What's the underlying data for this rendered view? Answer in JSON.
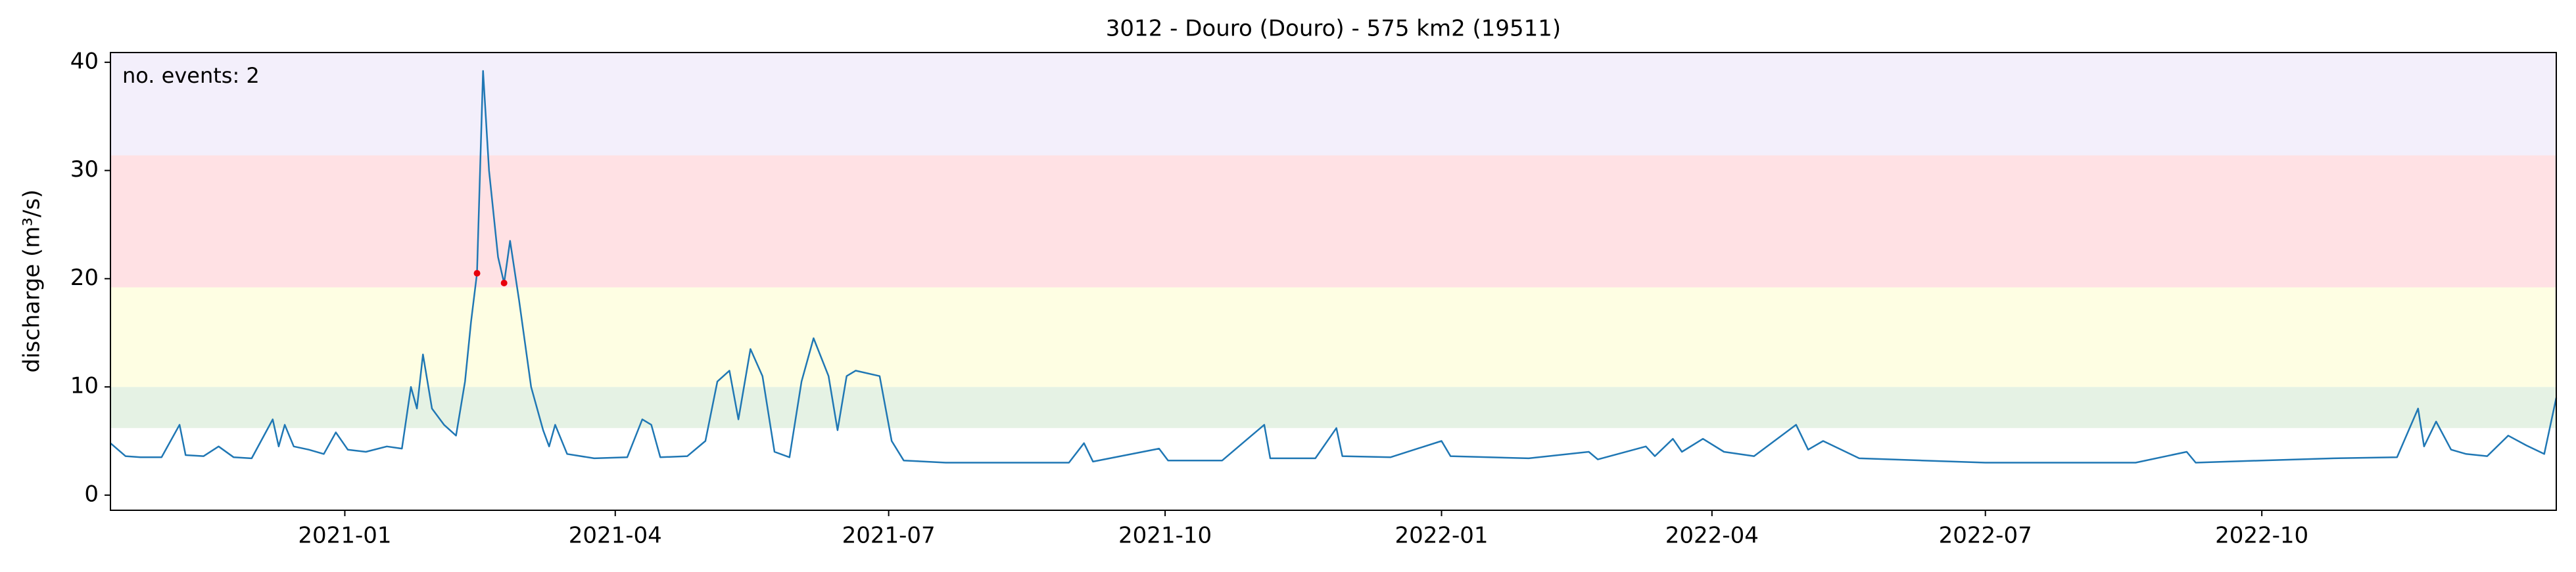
{
  "chart_data": {
    "type": "line",
    "title": "3012 - Douro (Douro) - 575 km2 (19511)",
    "ylabel": "discharge (m³/s)",
    "annotation": "no. events: 2",
    "annotation_color": "#e8000b",
    "xlim": [
      "2020-10-15",
      "2023-01-07"
    ],
    "ylim": [
      -1.4,
      40.9
    ],
    "yticks": [
      0,
      10,
      20,
      30,
      40
    ],
    "xticks": [
      {
        "value": "2021-01-01",
        "label": "2021-01"
      },
      {
        "value": "2021-04-01",
        "label": "2021-04"
      },
      {
        "value": "2021-07-01",
        "label": "2021-07"
      },
      {
        "value": "2021-10-01",
        "label": "2021-10"
      },
      {
        "value": "2022-01-01",
        "label": "2022-01"
      },
      {
        "value": "2022-04-01",
        "label": "2022-04"
      },
      {
        "value": "2022-07-01",
        "label": "2022-07"
      },
      {
        "value": "2022-10-01",
        "label": "2022-10"
      }
    ],
    "bands": [
      {
        "from": 6.2,
        "to": 10.0,
        "color": "#e5f2e4"
      },
      {
        "from": 10.0,
        "to": 19.2,
        "color": "#fefee3"
      },
      {
        "from": 19.2,
        "to": 31.4,
        "color": "#ffe1e4"
      },
      {
        "from": 31.4,
        "to": 40.9,
        "color": "#f3effb"
      }
    ],
    "series": [
      {
        "name": "discharge",
        "color": "#1f77b4",
        "x": [
          "2020-10-15",
          "2020-10-20",
          "2020-10-25",
          "2020-11-01",
          "2020-11-07",
          "2020-11-09",
          "2020-11-15",
          "2020-11-20",
          "2020-11-25",
          "2020-12-01",
          "2020-12-08",
          "2020-12-10",
          "2020-12-12",
          "2020-12-15",
          "2020-12-20",
          "2020-12-25",
          "2020-12-29",
          "2021-01-02",
          "2021-01-08",
          "2021-01-15",
          "2021-01-20",
          "2021-01-23",
          "2021-01-25",
          "2021-01-27",
          "2021-01-30",
          "2021-02-03",
          "2021-02-07",
          "2021-02-10",
          "2021-02-12",
          "2021-02-14",
          "2021-02-16",
          "2021-02-18",
          "2021-02-21",
          "2021-02-23",
          "2021-02-25",
          "2021-02-28",
          "2021-03-04",
          "2021-03-08",
          "2021-03-10",
          "2021-03-12",
          "2021-03-16",
          "2021-03-25",
          "2021-04-05",
          "2021-04-10",
          "2021-04-13",
          "2021-04-16",
          "2021-04-25",
          "2021-05-01",
          "2021-05-05",
          "2021-05-09",
          "2021-05-12",
          "2021-05-16",
          "2021-05-20",
          "2021-05-24",
          "2021-05-29",
          "2021-06-02",
          "2021-06-06",
          "2021-06-11",
          "2021-06-14",
          "2021-06-17",
          "2021-06-20",
          "2021-06-28",
          "2021-07-02",
          "2021-07-06",
          "2021-07-20",
          "2021-08-10",
          "2021-08-30",
          "2021-09-04",
          "2021-09-07",
          "2021-09-29",
          "2021-10-02",
          "2021-10-20",
          "2021-11-03",
          "2021-11-05",
          "2021-11-20",
          "2021-11-27",
          "2021-11-29",
          "2021-12-15",
          "2022-01-01",
          "2022-01-04",
          "2022-01-30",
          "2022-02-19",
          "2022-02-22",
          "2022-03-10",
          "2022-03-13",
          "2022-03-19",
          "2022-03-22",
          "2022-03-29",
          "2022-04-05",
          "2022-04-15",
          "2022-04-29",
          "2022-05-03",
          "2022-05-08",
          "2022-05-20",
          "2022-06-10",
          "2022-07-01",
          "2022-08-01",
          "2022-08-20",
          "2022-09-06",
          "2022-09-09",
          "2022-10-01",
          "2022-10-25",
          "2022-11-15",
          "2022-11-22",
          "2022-11-24",
          "2022-11-28",
          "2022-12-03",
          "2022-12-08",
          "2022-12-15",
          "2022-12-22",
          "2022-12-28",
          "2023-01-03",
          "2023-01-07"
        ],
        "values": [
          4.8,
          3.6,
          3.5,
          3.5,
          6.5,
          3.7,
          3.6,
          4.5,
          3.5,
          3.4,
          7.0,
          4.5,
          6.5,
          4.5,
          4.2,
          3.8,
          5.8,
          4.2,
          4.0,
          4.5,
          4.3,
          10.0,
          8.0,
          13.0,
          8.0,
          6.5,
          5.5,
          10.5,
          16.0,
          20.5,
          39.2,
          30.0,
          22.0,
          19.6,
          23.5,
          18.0,
          10.0,
          6.0,
          4.5,
          6.5,
          3.8,
          3.4,
          3.5,
          7.0,
          6.5,
          3.5,
          3.6,
          5.0,
          10.5,
          11.5,
          7.0,
          13.5,
          11.0,
          4.0,
          3.5,
          10.5,
          14.5,
          11.0,
          6.0,
          11.0,
          11.5,
          11.0,
          5.0,
          3.2,
          3.0,
          3.0,
          3.0,
          4.8,
          3.1,
          4.3,
          3.2,
          3.2,
          6.5,
          3.4,
          3.4,
          6.2,
          3.6,
          3.5,
          5.0,
          3.6,
          3.4,
          4.0,
          3.3,
          4.5,
          3.6,
          5.2,
          4.0,
          5.2,
          4.0,
          3.6,
          6.5,
          4.2,
          5.0,
          3.4,
          3.2,
          3.0,
          3.0,
          3.0,
          4.0,
          3.0,
          3.2,
          3.4,
          3.5,
          8.0,
          4.5,
          6.8,
          4.2,
          3.8,
          3.6,
          5.5,
          4.6,
          3.8,
          9.0
        ]
      }
    ],
    "events": {
      "color": "#e8000b",
      "x": [
        "2021-02-14",
        "2021-02-23"
      ],
      "values": [
        20.5,
        19.6
      ]
    }
  }
}
